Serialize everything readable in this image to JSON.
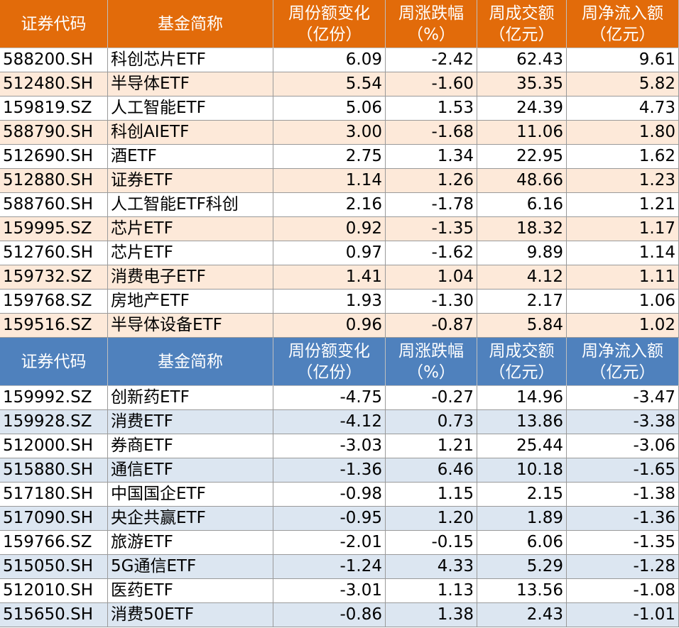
{
  "tables": [
    {
      "header": [
        [
          "证券代码"
        ],
        [
          "基金简称"
        ],
        [
          "周份额变化",
          "（亿份）"
        ],
        [
          "周涨跌幅",
          "（%）"
        ],
        [
          "周成交额",
          "（亿元）"
        ],
        [
          "周净流入额",
          "（亿元）"
        ]
      ],
      "rows": [
        [
          "588200.SH",
          "科创芯片ETF",
          "6.09",
          "-2.42",
          "62.43",
          "9.61"
        ],
        [
          "512480.SH",
          "半导体ETF",
          "5.54",
          "-1.60",
          "35.35",
          "5.82"
        ],
        [
          "159819.SZ",
          "人工智能ETF",
          "5.06",
          "1.53",
          "24.39",
          "4.73"
        ],
        [
          "588790.SH",
          "科创AIETF",
          "3.00",
          "-1.68",
          "11.06",
          "1.80"
        ],
        [
          "512690.SH",
          "酒ETF",
          "2.75",
          "1.34",
          "22.95",
          "1.62"
        ],
        [
          "512880.SH",
          "证券ETF",
          "1.14",
          "1.26",
          "48.66",
          "1.23"
        ],
        [
          "588760.SH",
          "人工智能ETF科创",
          "2.16",
          "-1.78",
          "6.16",
          "1.21"
        ],
        [
          "159995.SZ",
          "芯片ETF",
          "0.92",
          "-1.35",
          "18.32",
          "1.17"
        ],
        [
          "512760.SH",
          "芯片ETF",
          "0.97",
          "-1.62",
          "9.89",
          "1.14"
        ],
        [
          "159732.SZ",
          "消费电子ETF",
          "1.41",
          "1.04",
          "4.12",
          "1.11"
        ],
        [
          "159768.SZ",
          "房地产ETF",
          "1.93",
          "-1.30",
          "2.17",
          "1.06"
        ],
        [
          "159516.SZ",
          "半导体设备ETF",
          "0.96",
          "-0.87",
          "5.84",
          "1.02"
        ]
      ]
    },
    {
      "header": [
        [
          "证券代码"
        ],
        [
          "基金简称"
        ],
        [
          "周份额变化",
          "（亿份）"
        ],
        [
          "周涨跌幅",
          "（%）"
        ],
        [
          "周成交额",
          "（亿元）"
        ],
        [
          "周净流入额",
          "（亿元）"
        ]
      ],
      "rows": [
        [
          "159992.SZ",
          "创新药ETF",
          "-4.75",
          "-0.27",
          "14.96",
          "-3.47"
        ],
        [
          "159928.SZ",
          "消费ETF",
          "-4.12",
          "0.73",
          "13.86",
          "-3.38"
        ],
        [
          "512000.SH",
          "券商ETF",
          "-3.03",
          "1.21",
          "25.44",
          "-3.06"
        ],
        [
          "515880.SH",
          "通信ETF",
          "-1.36",
          "6.46",
          "10.18",
          "-1.65"
        ],
        [
          "517180.SH",
          "中国国企ETF",
          "-0.98",
          "1.15",
          "2.15",
          "-1.38"
        ],
        [
          "517090.SH",
          "央企共赢ETF",
          "-0.95",
          "1.20",
          "1.89",
          "-1.36"
        ],
        [
          "159766.SZ",
          "旅游ETF",
          "-2.01",
          "-0.15",
          "6.06",
          "-1.35"
        ],
        [
          "515050.SH",
          "5G通信ETF",
          "-1.24",
          "4.33",
          "5.29",
          "-1.28"
        ],
        [
          "512010.SH",
          "医药ETF",
          "-3.01",
          "1.13",
          "13.56",
          "-1.08"
        ],
        [
          "515650.SH",
          "消费50ETF",
          "-0.86",
          "1.38",
          "2.43",
          "-1.01"
        ]
      ]
    }
  ]
}
